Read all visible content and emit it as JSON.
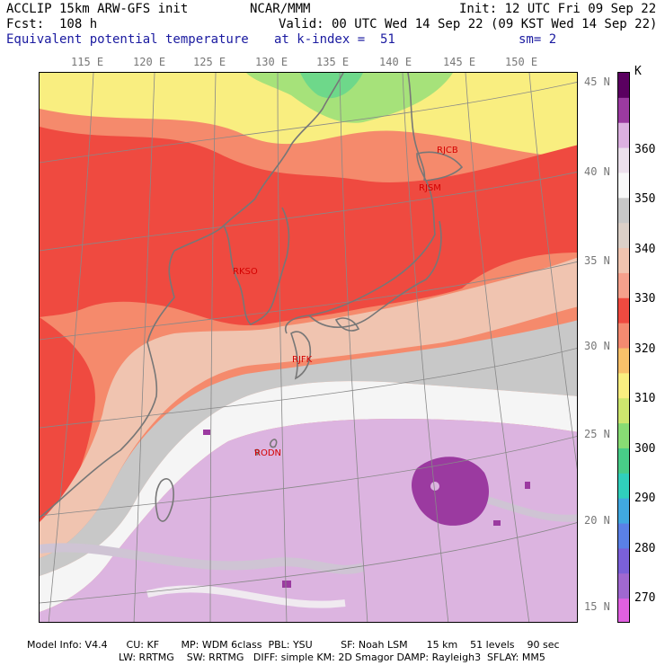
{
  "header": {
    "model": "ACCLIP 15km ARW-GFS init",
    "org": "NCAR/MMM",
    "init": "Init: 12 UTC Fri 09 Sep 22",
    "fcst": "Fcst:  108 h",
    "valid": "Valid: 00 UTC Wed 14 Sep 22 (09 KST Wed 14 Sep 22)",
    "field": "Equivalent potential temperature",
    "level": "at k-index =  51",
    "smooth": "sm= 2"
  },
  "lon_labels": [
    "115 E",
    "120 E",
    "125 E",
    "130 E",
    "135 E",
    "140 E",
    "145 E",
    "150 E"
  ],
  "lat_labels": [
    "45 N",
    "40 N",
    "35 N",
    "30 N",
    "25 N",
    "20 N",
    "15 N"
  ],
  "colorbar": {
    "unit": "K",
    "labels": [
      "360",
      "350",
      "340",
      "330",
      "320",
      "310",
      "300",
      "290",
      "280",
      "270"
    ],
    "colors": [
      "#5a0060",
      "#9b3aa0",
      "#dcb0e0",
      "#ece0ec",
      "#f8f8f8",
      "#c8c8c8",
      "#dcd0c8",
      "#f0c4b0",
      "#f5a08c",
      "#ef4a40",
      "#f48a70",
      "#f8c06a",
      "#f9ee80",
      "#cde66e",
      "#88dc74",
      "#48cc88",
      "#30cfbc",
      "#40a8e0",
      "#5a80e6",
      "#7a60d8",
      "#a068d0",
      "#e060e0"
    ]
  },
  "stations": [
    {
      "id": "RJCB"
    },
    {
      "id": "RJSM"
    },
    {
      "id": "RKSO"
    },
    {
      "id": "RJFK"
    },
    {
      "id": "RODN"
    }
  ],
  "colors": {
    "warm_red": "#ef4a40",
    "orange": "#f58a6c",
    "yellow": "#f9ee80",
    "green": "#a6e27a",
    "grey": "#c8c8c8",
    "white": "#f5f5f5",
    "lavender": "#dcb4e0",
    "purple": "#9b3aa0",
    "coast": "#777777"
  },
  "footer": {
    "line1": "Model Info: V4.4      CU: KF       MP: WDM 6class  PBL: YSU         SF: Noah LSM      15 km    51 levels    90 sec",
    "line2": "LW: RRTMG    SW: RRTMG   DIFF: simple KM: 2D Smagor DAMP: Rayleigh3  SFLAY: MM5"
  }
}
